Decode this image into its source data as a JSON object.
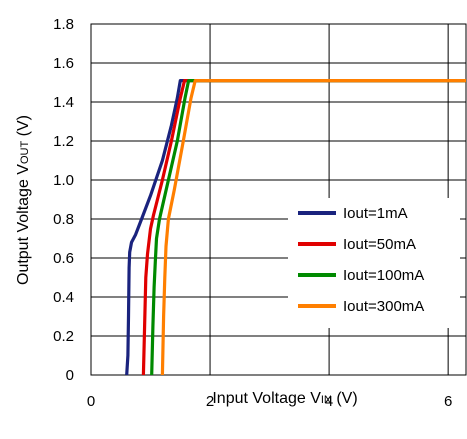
{
  "chart_data": {
    "type": "line",
    "xlabel_main": "Input Voltage V",
    "xlabel_sub": "IN",
    "xlabel_unit": " (V)",
    "ylabel_main": "Output Voltage V",
    "ylabel_sub": "OUT",
    "ylabel_unit": " (V)",
    "xlim": [
      0,
      6.3
    ],
    "ylim": [
      0,
      1.8
    ],
    "x_ticks": [
      0,
      2,
      4,
      6
    ],
    "x_tick_labels": [
      "0",
      "2",
      "4",
      "6"
    ],
    "y_ticks": [
      0,
      0.2,
      0.4,
      0.6,
      0.8,
      1.0,
      1.2,
      1.4,
      1.6,
      1.8
    ],
    "y_tick_labels": [
      "0",
      "0.2",
      "0.4",
      "0.6",
      "0.8",
      "1.0",
      "1.2",
      "1.4",
      "1.6",
      "1.8"
    ],
    "grid": true,
    "legend_position": "center-right",
    "series": [
      {
        "name": "Iout=1mA",
        "color": "#1a237e",
        "points": [
          [
            0.6,
            0.0
          ],
          [
            0.62,
            0.1
          ],
          [
            0.63,
            0.3
          ],
          [
            0.64,
            0.55
          ],
          [
            0.65,
            0.63
          ],
          [
            0.68,
            0.68
          ],
          [
            0.75,
            0.72
          ],
          [
            0.85,
            0.8
          ],
          [
            1.0,
            0.92
          ],
          [
            1.2,
            1.1
          ],
          [
            1.35,
            1.28
          ],
          [
            1.45,
            1.42
          ],
          [
            1.5,
            1.51
          ],
          [
            6.3,
            1.51
          ]
        ]
      },
      {
        "name": "Iout=50mA",
        "color": "#e00000",
        "points": [
          [
            0.88,
            0.0
          ],
          [
            0.9,
            0.25
          ],
          [
            0.92,
            0.5
          ],
          [
            0.95,
            0.62
          ],
          [
            1.0,
            0.75
          ],
          [
            1.05,
            0.82
          ],
          [
            1.2,
            1.0
          ],
          [
            1.35,
            1.2
          ],
          [
            1.5,
            1.42
          ],
          [
            1.57,
            1.51
          ],
          [
            6.3,
            1.51
          ]
        ]
      },
      {
        "name": "Iout=100mA",
        "color": "#008a00",
        "points": [
          [
            1.02,
            0.0
          ],
          [
            1.04,
            0.25
          ],
          [
            1.06,
            0.45
          ],
          [
            1.08,
            0.58
          ],
          [
            1.1,
            0.7
          ],
          [
            1.15,
            0.8
          ],
          [
            1.3,
            1.0
          ],
          [
            1.45,
            1.2
          ],
          [
            1.58,
            1.42
          ],
          [
            1.64,
            1.51
          ],
          [
            6.3,
            1.51
          ]
        ]
      },
      {
        "name": "Iout=300mA",
        "color": "#ff7f00",
        "points": [
          [
            1.2,
            0.0
          ],
          [
            1.22,
            0.3
          ],
          [
            1.24,
            0.5
          ],
          [
            1.26,
            0.66
          ],
          [
            1.3,
            0.8
          ],
          [
            1.4,
            0.95
          ],
          [
            1.55,
            1.2
          ],
          [
            1.68,
            1.42
          ],
          [
            1.75,
            1.51
          ],
          [
            6.3,
            1.51
          ]
        ]
      }
    ]
  }
}
